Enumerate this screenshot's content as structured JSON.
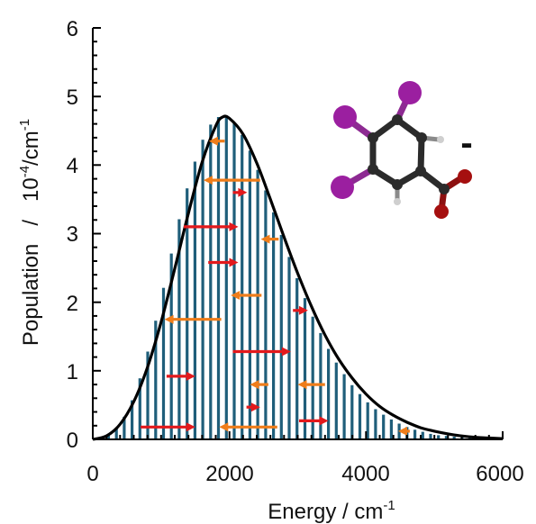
{
  "chart_data": {
    "type": "bar",
    "xlabel": "Energy / cm",
    "xlabel_sup": "-1",
    "ylabel_main": "Population   /   10",
    "ylabel_sup1": "-4",
    "ylabel_unit": "/cm",
    "ylabel_sup2": "-1",
    "xlim": [
      0,
      6000
    ],
    "ylim": [
      0,
      6
    ],
    "x_ticks": [
      "0",
      "2000",
      "4000",
      "6000"
    ],
    "y_ticks": [
      "0",
      "1",
      "2",
      "3",
      "4",
      "5",
      "6"
    ],
    "grid": false,
    "bar_color": "#1f5e7a",
    "curve_color": "#000000",
    "bars": {
      "x": [
        115,
        230,
        345,
        460,
        575,
        690,
        805,
        920,
        1035,
        1150,
        1265,
        1380,
        1495,
        1610,
        1725,
        1840,
        1955,
        2070,
        2185,
        2300,
        2415,
        2530,
        2645,
        2760,
        2875,
        2990,
        3105,
        3220,
        3335,
        3450,
        3565,
        3680,
        3795,
        3910,
        4025,
        4140,
        4255,
        4370,
        4485,
        4600,
        4715,
        4830,
        4945,
        5060,
        5175,
        5290,
        5405,
        5520,
        5635,
        5750
      ],
      "values": [
        0.02,
        0.07,
        0.17,
        0.33,
        0.57,
        0.89,
        1.28,
        1.73,
        2.21,
        2.71,
        3.21,
        3.66,
        4.05,
        4.37,
        4.59,
        4.7,
        4.7,
        4.61,
        4.44,
        4.21,
        3.93,
        3.63,
        3.31,
        2.98,
        2.66,
        2.35,
        2.06,
        1.79,
        1.55,
        1.32,
        1.12,
        0.95,
        0.79,
        0.66,
        0.54,
        0.44,
        0.36,
        0.29,
        0.23,
        0.18,
        0.14,
        0.11,
        0.08,
        0.06,
        0.05,
        0.04,
        0.03,
        0.02,
        0.01,
        0.01
      ]
    },
    "curve": {
      "x": [
        0,
        200,
        400,
        600,
        800,
        1000,
        1200,
        1400,
        1600,
        1800,
        1900,
        2000,
        2200,
        2400,
        2600,
        2800,
        3000,
        3200,
        3400,
        3600,
        3800,
        4000,
        4200,
        4400,
        4600,
        4800,
        5000,
        5200,
        5400,
        5600,
        5800,
        6000
      ],
      "y": [
        0,
        0.05,
        0.22,
        0.55,
        1.05,
        1.71,
        2.49,
        3.3,
        4.04,
        4.57,
        4.7,
        4.68,
        4.45,
        4.03,
        3.5,
        2.95,
        2.42,
        1.94,
        1.52,
        1.17,
        0.89,
        0.66,
        0.48,
        0.35,
        0.25,
        0.17,
        0.12,
        0.08,
        0.05,
        0.03,
        0.02,
        0.01
      ]
    },
    "arrows_red": [
      {
        "y": 0.18,
        "x0": 700,
        "x1": 1500
      },
      {
        "y": 0.92,
        "x0": 1080,
        "x1": 1500
      },
      {
        "y": 1.28,
        "x0": 2050,
        "x1": 2900
      },
      {
        "y": 0.47,
        "x0": 2250,
        "x1": 2450
      },
      {
        "y": 0.27,
        "x0": 3020,
        "x1": 3450
      },
      {
        "y": 1.88,
        "x0": 2930,
        "x1": 3150
      },
      {
        "y": 2.58,
        "x0": 1690,
        "x1": 2130
      },
      {
        "y": 3.1,
        "x0": 1330,
        "x1": 2130
      },
      {
        "y": 3.6,
        "x0": 2050,
        "x1": 2260
      }
    ],
    "arrows_orange": [
      {
        "y": 0.18,
        "x0": 2700,
        "x1": 1850
      },
      {
        "y": 0.8,
        "x0": 3400,
        "x1": 3000
      },
      {
        "y": 0.8,
        "x0": 2570,
        "x1": 2300
      },
      {
        "y": 1.75,
        "x0": 1880,
        "x1": 1050
      },
      {
        "y": 2.1,
        "x0": 2470,
        "x1": 2020
      },
      {
        "y": 2.92,
        "x0": 2720,
        "x1": 2460
      },
      {
        "y": 3.78,
        "x0": 2450,
        "x1": 1620
      },
      {
        "y": 4.35,
        "x0": 1930,
        "x1": 1700
      },
      {
        "y": 0.12,
        "x0": 4640,
        "x1": 4470
      }
    ],
    "arrow_red_color": "#e3191c",
    "arrow_orange_color": "#ef7d1a"
  },
  "molecule": {
    "charge_label": "-",
    "colors": {
      "iodine": "#9b1fa0",
      "carbon": "#2b2b2b",
      "oxygen": "#a50f0f",
      "hydrogen": "#cfcfcf"
    }
  }
}
